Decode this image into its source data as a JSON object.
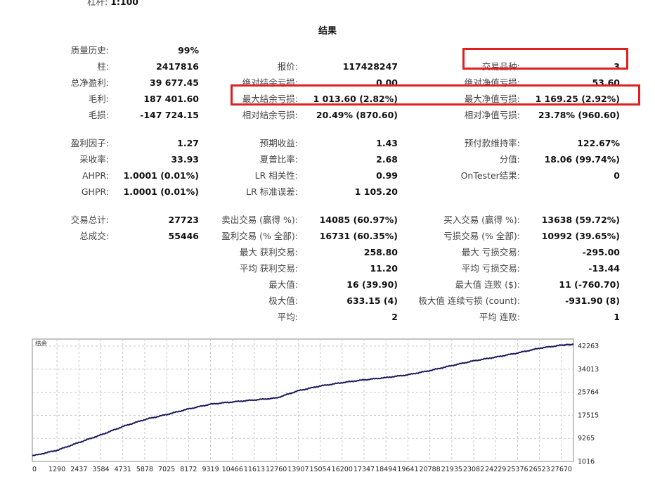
{
  "header": {
    "cut_label": "杠杆:",
    "cut_value": "1:100",
    "title": "结果"
  },
  "stats": {
    "col1": [
      {
        "label": "质量历史:",
        "value": "99%"
      },
      {
        "label": "柱:",
        "value": "2417816"
      },
      {
        "label": "总净盈利:",
        "value": "39 677.45"
      },
      {
        "label": "毛利:",
        "value": "187 401.60"
      },
      {
        "label": "毛损:",
        "value": "-147 724.15"
      },
      {
        "label": "盈利因子:",
        "value": "1.27"
      },
      {
        "label": "采收率:",
        "value": "33.93"
      },
      {
        "label": "AHPR:",
        "value": "1.0001 (0.01%)"
      },
      {
        "label": "GHPR:",
        "value": "1.0001 (0.01%)"
      },
      {
        "label": "交易总计:",
        "value": "27723"
      },
      {
        "label": "总成交:",
        "value": "55446"
      }
    ],
    "col2": [
      {
        "label": "报价:",
        "value": "117428247"
      },
      {
        "label": "绝对结余亏损:",
        "value": "0.00"
      },
      {
        "label": "最大结余亏损:",
        "value": "1 013.60 (2.82%)"
      },
      {
        "label": "相对结余亏损:",
        "value": "20.49% (870.60)"
      },
      {
        "label": "预期收益:",
        "value": "1.43"
      },
      {
        "label": "夏普比率:",
        "value": "2.68"
      },
      {
        "label": "LR 相关性:",
        "value": "0.99"
      },
      {
        "label": "LR 标准误差:",
        "value": "1 105.20"
      },
      {
        "label": "卖出交易 (赢得 %):",
        "value": "14085 (60.97%)"
      },
      {
        "label": "盈利交易 (% 全部):",
        "value": "16731 (60.35%)"
      },
      {
        "label": "最大 获利交易:",
        "value": "258.80"
      },
      {
        "label": "平均 获利交易:",
        "value": "11.20"
      },
      {
        "label": "最大值:",
        "value": "16 (39.90)"
      },
      {
        "label": "极大值:",
        "value": "633.15 (4)"
      },
      {
        "label": "平均:",
        "value": "2"
      }
    ],
    "col3": [
      {
        "label": "交易品种:",
        "value": "3"
      },
      {
        "label": "绝对净值亏损:",
        "value": "53.60"
      },
      {
        "label": "最大净值亏损:",
        "value": "1 169.25 (2.92%)"
      },
      {
        "label": "相对净值亏损:",
        "value": "23.78% (960.60)"
      },
      {
        "label": "预付款维持率:",
        "value": "122.67%"
      },
      {
        "label": "分值:",
        "value": "18.06 (99.74%)"
      },
      {
        "label": "OnTester结果:",
        "value": "0"
      },
      {
        "label": "买入交易 (赢得 %):",
        "value": "13638 (59.72%)"
      },
      {
        "label": "亏损交易 (% 全部):",
        "value": "10992 (39.65%)"
      },
      {
        "label": "最大 亏损交易:",
        "value": "-295.00"
      },
      {
        "label": "平均 亏损交易:",
        "value": "-13.44"
      },
      {
        "label": "最大值 连败 ($):",
        "value": "11 (-760.70)"
      },
      {
        "label": "极大值 连续亏损 (count):",
        "value": "-931.90 (8)"
      },
      {
        "label": "平均 连败:",
        "value": "1"
      }
    ]
  },
  "highlight_color": "#e02020",
  "chart_data": {
    "type": "line",
    "title": "结余",
    "x_ticks": [
      0,
      1290,
      2437,
      3584,
      4731,
      5878,
      7025,
      8172,
      9319,
      10466,
      11613,
      12760,
      13907,
      15054,
      16200,
      17347,
      18494,
      19641,
      20788,
      21935,
      23082,
      24229,
      25376,
      26523,
      27670
    ],
    "y_ticks": [
      1016,
      9265,
      17515,
      25764,
      34013,
      42263
    ],
    "xlim": [
      0,
      28300
    ],
    "ylim": [
      1016,
      42263
    ],
    "grid": true,
    "line_color": "#1a1a5e",
    "series": [
      {
        "x": [
          0,
          1290,
          2437,
          3584,
          4731,
          5878,
          7025,
          8172,
          9319,
          10466,
          11613,
          12760,
          13907,
          15054,
          16200,
          17347,
          18494,
          19641,
          20788,
          21935,
          23082,
          24229,
          25376,
          26523,
          27670,
          28300
        ],
        "y": [
          3000,
          5000,
          7800,
          10500,
          13500,
          16000,
          17800,
          19800,
          21500,
          22300,
          23000,
          23700,
          26300,
          28000,
          29200,
          30200,
          31000,
          32000,
          33500,
          35300,
          37000,
          38300,
          39800,
          41500,
          42600,
          42900
        ]
      }
    ]
  }
}
